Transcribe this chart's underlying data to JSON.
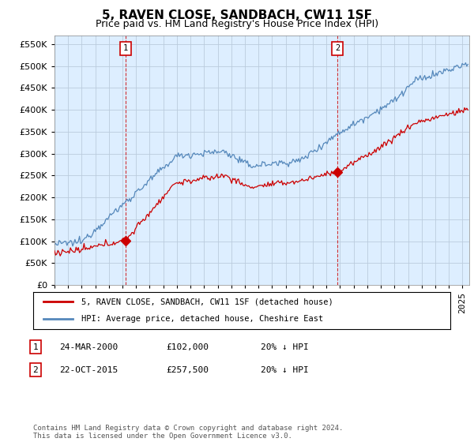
{
  "title": "5, RAVEN CLOSE, SANDBACH, CW11 1SF",
  "subtitle": "Price paid vs. HM Land Registry's House Price Index (HPI)",
  "ytick_values": [
    0,
    50000,
    100000,
    150000,
    200000,
    250000,
    300000,
    350000,
    400000,
    450000,
    500000,
    550000
  ],
  "ylim": [
    0,
    570000
  ],
  "xlim_start": 1995.0,
  "xlim_end": 2025.5,
  "hpi_color": "#5588bb",
  "price_color": "#cc0000",
  "chart_bg": "#ddeeff",
  "marker1_year": 2000.23,
  "marker1_price": 102000,
  "marker2_year": 2015.8,
  "marker2_price": 257500,
  "legend_label_red": "5, RAVEN CLOSE, SANDBACH, CW11 1SF (detached house)",
  "legend_label_blue": "HPI: Average price, detached house, Cheshire East",
  "table_row1": [
    "1",
    "24-MAR-2000",
    "£102,000",
    "20% ↓ HPI"
  ],
  "table_row2": [
    "2",
    "22-OCT-2015",
    "£257,500",
    "20% ↓ HPI"
  ],
  "footer": "Contains HM Land Registry data © Crown copyright and database right 2024.\nThis data is licensed under the Open Government Licence v3.0.",
  "background_color": "#ffffff",
  "grid_color": "#bbccdd",
  "title_fontsize": 11,
  "subtitle_fontsize": 9,
  "tick_fontsize": 8
}
